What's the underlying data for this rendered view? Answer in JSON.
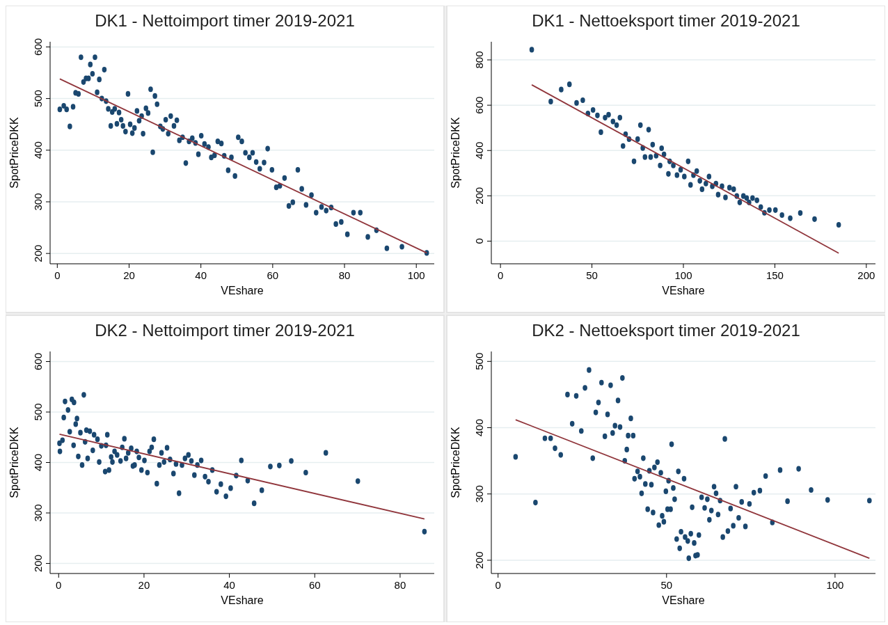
{
  "chart_data": [
    {
      "type": "scatter",
      "title": "DK1 - Nettoimport timer 2019-2021",
      "xlabel": "VEshare",
      "ylabel": "SpotPriceDKK",
      "xlim": [
        -2,
        105
      ],
      "ylim": [
        180,
        610
      ],
      "xticks": [
        0,
        20,
        40,
        60,
        80,
        100
      ],
      "yticks": [
        200,
        300,
        400,
        500,
        600
      ],
      "grid": "y",
      "marker": "circle",
      "series": [
        {
          "color": "#1a476f",
          "x": [
            0.7,
            1.8,
            2.6,
            3.5,
            4.4,
            5.1,
            5.9,
            6.6,
            7.3,
            8.0,
            8.7,
            9.2,
            9.8,
            10.5,
            11.1,
            11.7,
            12.4,
            13.1,
            13.6,
            14.2,
            14.9,
            15.3,
            16.0,
            16.6,
            17.2,
            17.8,
            18.3,
            19.0,
            19.7,
            20.3,
            20.9,
            21.5,
            22.2,
            22.8,
            23.5,
            23.9,
            24.7,
            25.3,
            26.0,
            26.6,
            27.2,
            27.8,
            28.7,
            29.4,
            30.2,
            30.9,
            31.6,
            32.5,
            33.3,
            34.0,
            34.9,
            35.8,
            36.7,
            37.6,
            38.5,
            39.3,
            40.1,
            41.0,
            42.1,
            42.9,
            43.8,
            44.7,
            45.7,
            46.5,
            47.6,
            48.5,
            49.5,
            50.4,
            51.4,
            52.4,
            53.5,
            54.4,
            55.4,
            56.4,
            57.6,
            58.6,
            59.8,
            61.0,
            62.0,
            63.3,
            64.5,
            65.6,
            67.0,
            68.1,
            69.3,
            70.8,
            72.1,
            73.6,
            74.9,
            76.3,
            77.6,
            79.1,
            80.8,
            82.5,
            84.4,
            86.5,
            88.9,
            91.8,
            96.0,
            102.9
          ],
          "values": [
            479,
            486,
            479,
            446,
            484,
            511,
            509,
            580,
            532,
            539,
            539,
            566,
            548,
            580,
            512,
            537,
            500,
            556,
            495,
            480,
            447,
            474,
            480,
            451,
            473,
            459,
            447,
            436,
            509,
            450,
            433,
            443,
            476,
            457,
            466,
            432,
            481,
            472,
            518,
            396,
            505,
            489,
            446,
            441,
            459,
            432,
            466,
            447,
            458,
            419,
            425,
            375,
            417,
            423,
            414,
            392,
            428,
            412,
            406,
            386,
            390,
            417,
            413,
            389,
            361,
            386,
            350,
            425,
            417,
            395,
            386,
            395,
            377,
            364,
            376,
            403,
            362,
            328,
            331,
            346,
            292,
            299,
            362,
            325,
            294,
            313,
            279,
            290,
            283,
            289,
            257,
            261,
            237,
            279,
            279,
            232,
            245,
            210,
            213,
            201
          ]
        },
        {
          "type": "line",
          "color": "#90353b",
          "marker": "none",
          "x": [
            0.7,
            102.9
          ],
          "values": [
            538,
            201
          ]
        }
      ]
    },
    {
      "type": "scatter",
      "title": "DK1 - Nettoeksport timer 2019-2021",
      "xlabel": "VEshare",
      "ylabel": "SpotPriceDKK",
      "xlim": [
        -5,
        205
      ],
      "ylim": [
        -100,
        880
      ],
      "xticks": [
        0,
        50,
        100,
        150,
        200
      ],
      "yticks": [
        0,
        200,
        400,
        600,
        800
      ],
      "grid": "y",
      "marker": "circle",
      "series": [
        {
          "color": "#1a476f",
          "x": [
            17.1,
            27.5,
            33.2,
            37.7,
            41.6,
            45.0,
            47.8,
            50.6,
            53.0,
            54.9,
            57.2,
            59.1,
            61.5,
            63.5,
            65.3,
            67.0,
            68.4,
            70.3,
            73.0,
            75.0,
            76.5,
            77.8,
            79.0,
            81.0,
            82.1,
            83.2,
            85.1,
            87.3,
            88.1,
            89.4,
            91.8,
            92.5,
            94.5,
            96.5,
            98.5,
            100.5,
            102.6,
            103.9,
            105.5,
            107.3,
            109.0,
            110.2,
            112.3,
            114.0,
            115.8,
            117.8,
            119.0,
            121.1,
            123.0,
            125.2,
            127.5,
            129.2,
            130.8,
            132.8,
            134.6,
            135.9,
            137.8,
            140.2,
            142.3,
            144.3,
            147.0,
            150.3,
            153.9,
            158.4,
            163.9,
            171.7,
            184.9
          ],
          "values": [
            845,
            616,
            669,
            692,
            610,
            622,
            563,
            579,
            555,
            481,
            545,
            558,
            528,
            512,
            545,
            420,
            472,
            450,
            352,
            450,
            512,
            411,
            371,
            492,
            371,
            426,
            377,
            334,
            410,
            383,
            297,
            352,
            334,
            291,
            315,
            285,
            352,
            248,
            291,
            309,
            266,
            229,
            254,
            285,
            242,
            254,
            205,
            242,
            193,
            236,
            229,
            199,
            171,
            199,
            190,
            171,
            190,
            180,
            150,
            125,
            137,
            137,
            115,
            101,
            124,
            97,
            72
          ]
        },
        {
          "type": "line",
          "color": "#90353b",
          "marker": "none",
          "x": [
            17.1,
            184.9
          ],
          "values": [
            690,
            -53
          ]
        }
      ]
    },
    {
      "type": "scatter",
      "title": "DK2 - Nettoimport timer 2019-2021",
      "xlabel": "VEshare",
      "ylabel": "SpotPriceDKK",
      "xlim": [
        -2,
        88
      ],
      "ylim": [
        180,
        620
      ],
      "xticks": [
        0,
        20,
        40,
        60,
        80
      ],
      "yticks": [
        200,
        300,
        400,
        500,
        600
      ],
      "grid": "y",
      "marker": "circle",
      "series": [
        {
          "color": "#1a476f",
          "x": [
            0.2,
            0.3,
            0.9,
            1.2,
            1.5,
            2.2,
            2.6,
            3.1,
            3.6,
            3.5,
            4.0,
            4.3,
            4.6,
            5.1,
            5.5,
            5.9,
            6.2,
            6.5,
            6.8,
            7.3,
            8.0,
            8.3,
            9.1,
            9.5,
            10.0,
            10.9,
            11.1,
            11.4,
            11.8,
            12.3,
            12.6,
            13.1,
            13.7,
            14.5,
            14.9,
            15.4,
            15.8,
            16.3,
            17.0,
            17.4,
            17.8,
            18.3,
            18.8,
            19.4,
            20.1,
            20.8,
            21.3,
            21.8,
            22.3,
            23.0,
            23.6,
            24.1,
            24.7,
            25.4,
            26.1,
            26.9,
            27.5,
            28.2,
            28.9,
            29.6,
            30.4,
            31.1,
            31.8,
            32.5,
            33.4,
            34.3,
            35.1,
            36.0,
            37.0,
            38.0,
            39.2,
            40.3,
            41.6,
            42.8,
            44.3,
            45.8,
            47.6,
            49.6,
            51.7,
            54.5,
            57.9,
            62.6,
            70.1,
            85.7
          ],
          "values": [
            438,
            422,
            444,
            489,
            521,
            504,
            461,
            525,
            519,
            434,
            476,
            487,
            412,
            459,
            395,
            534,
            441,
            464,
            408,
            462,
            424,
            455,
            446,
            401,
            433,
            382,
            434,
            455,
            385,
            411,
            401,
            422,
            415,
            403,
            430,
            447,
            408,
            419,
            428,
            393,
            395,
            422,
            410,
            385,
            404,
            380,
            422,
            430,
            446,
            358,
            395,
            419,
            401,
            429,
            406,
            378,
            397,
            339,
            395,
            408,
            415,
            403,
            375,
            395,
            404,
            372,
            362,
            385,
            342,
            357,
            333,
            349,
            374,
            404,
            364,
            319,
            345,
            392,
            394,
            403,
            380,
            419,
            363,
            263
          ]
        },
        {
          "type": "line",
          "color": "#90353b",
          "marker": "none",
          "x": [
            0.2,
            85.7
          ],
          "values": [
            456,
            288
          ]
        }
      ]
    },
    {
      "type": "scatter",
      "title": "DK2 - Nettoeksport timer 2019-2021",
      "xlabel": "VEshare",
      "ylabel": "SpotPriceDKK",
      "xlim": [
        -2,
        112
      ],
      "ylim": [
        180,
        515
      ],
      "xticks": [
        0,
        50,
        100
      ],
      "yticks": [
        200,
        300,
        400,
        500
      ],
      "grid": "y",
      "marker": "circle",
      "series": [
        {
          "color": "#1a476f",
          "x": [
            5.2,
            11.1,
            13.9,
            15.6,
            16.9,
            18.6,
            20.6,
            22.0,
            23.2,
            24.7,
            25.8,
            27.0,
            28.1,
            29.0,
            29.8,
            30.7,
            31.7,
            32.5,
            33.4,
            34.0,
            34.7,
            35.6,
            36.2,
            36.9,
            37.6,
            38.2,
            38.6,
            39.4,
            40.1,
            40.5,
            41.4,
            42.1,
            42.6,
            43.1,
            43.7,
            44.4,
            44.9,
            45.5,
            46.0,
            46.4,
            47.3,
            47.7,
            48.3,
            48.7,
            49.2,
            49.8,
            50.3,
            50.6,
            51.2,
            51.5,
            52.0,
            52.4,
            53.0,
            53.5,
            53.9,
            54.3,
            55.2,
            55.5,
            56.3,
            56.6,
            57.2,
            57.6,
            58.2,
            58.6,
            59.2,
            59.6,
            60.4,
            61.3,
            62.1,
            62.7,
            63.3,
            64.1,
            64.7,
            65.3,
            65.9,
            66.7,
            67.3,
            68.2,
            69.0,
            69.8,
            70.6,
            71.4,
            72.3,
            73.4,
            74.6,
            75.9,
            77.7,
            79.4,
            81.4,
            83.7,
            85.9,
            89.2,
            92.9,
            97.8,
            110.2
          ],
          "values": [
            356,
            287,
            384,
            384,
            369,
            359,
            450,
            406,
            448,
            395,
            460,
            487,
            354,
            423,
            438,
            468,
            387,
            420,
            464,
            392,
            403,
            441,
            401,
            475,
            350,
            367,
            388,
            414,
            388,
            323,
            334,
            326,
            301,
            354,
            315,
            277,
            335,
            314,
            272,
            340,
            348,
            253,
            332,
            267,
            258,
            304,
            277,
            320,
            277,
            375,
            309,
            292,
            232,
            334,
            218,
            243,
            323,
            235,
            229,
            203,
            240,
            280,
            226,
            207,
            208,
            238,
            295,
            279,
            292,
            261,
            275,
            311,
            301,
            269,
            290,
            235,
            383,
            244,
            278,
            252,
            311,
            264,
            288,
            251,
            285,
            302,
            305,
            327,
            257,
            336,
            289,
            338,
            306,
            291,
            290
          ]
        },
        {
          "type": "line",
          "color": "#90353b",
          "marker": "none",
          "x": [
            5.2,
            110.2
          ],
          "values": [
            412,
            203
          ]
        }
      ]
    }
  ]
}
